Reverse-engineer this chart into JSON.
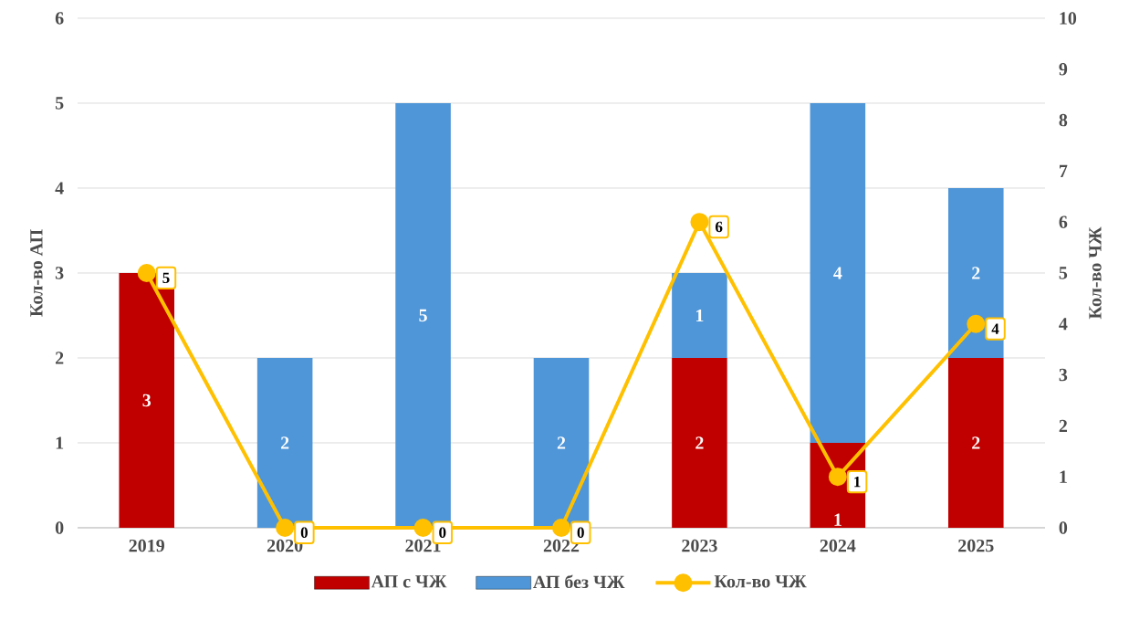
{
  "chart_data": {
    "type": "bar",
    "stacked": true,
    "categories": [
      "2019",
      "2020",
      "2021",
      "2022",
      "2023",
      "2024",
      "2025"
    ],
    "ylabel": "Кол-во АП",
    "y2label": "Кол-во ЧЖ",
    "ylim": [
      0,
      6
    ],
    "yticks": [
      0,
      1,
      2,
      3,
      4,
      5,
      6
    ],
    "y2lim": [
      0,
      10
    ],
    "y2ticks": [
      0,
      1,
      2,
      3,
      4,
      5,
      6,
      7,
      8,
      9,
      10
    ],
    "grid": "y",
    "legend": "bottom",
    "series": [
      {
        "name": "АП с ЧЖ",
        "color": "#c00000",
        "values": [
          3,
          0,
          0,
          0,
          2,
          1,
          2
        ],
        "value_labels": [
          "3",
          null,
          null,
          null,
          "2",
          "1",
          "2"
        ]
      },
      {
        "name": "АП без ЧЖ",
        "color": "#4f96d8",
        "values": [
          0,
          2,
          5,
          2,
          1,
          4,
          2
        ],
        "value_labels": [
          null,
          "2",
          "5",
          "2",
          "1",
          "4",
          "2"
        ]
      },
      {
        "name": "Кол-во ЧЖ",
        "type": "line",
        "axis": "y2",
        "color": "#ffc000",
        "marker": "circle",
        "values": [
          5,
          0,
          0,
          0,
          6,
          1,
          4
        ],
        "value_labels": [
          "5",
          "0",
          "0",
          "0",
          "6",
          "1",
          "4"
        ]
      }
    ]
  }
}
